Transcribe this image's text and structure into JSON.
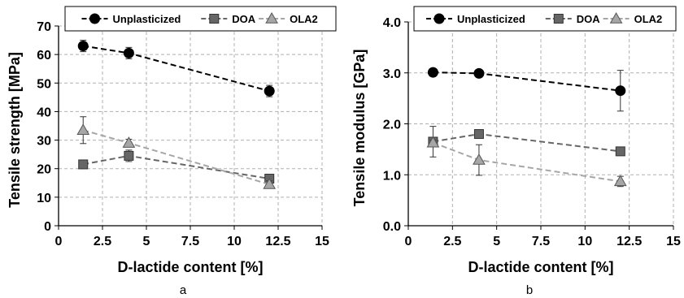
{
  "chart_data": [
    {
      "type": "line",
      "panel_label": "a",
      "xlabel": "D-lactide content [%]",
      "ylabel": "Tensile strength [MPa]",
      "xlim": [
        0,
        15
      ],
      "ylim": [
        0,
        70
      ],
      "xticks": [
        "0",
        "2.5",
        "5",
        "7.5",
        "10",
        "12.5",
        "15"
      ],
      "yticks": [
        "0",
        "10",
        "20",
        "30",
        "40",
        "50",
        "60",
        "70"
      ],
      "grid": true,
      "legend_position": "top",
      "series": [
        {
          "name": "Unplasticized",
          "marker": "circle",
          "color": "#000000",
          "line": "dashed",
          "x": [
            1.4,
            4,
            12
          ],
          "y": [
            63,
            60.5,
            47.2
          ],
          "err": [
            2,
            2,
            2
          ]
        },
        {
          "name": "DOA",
          "marker": "square",
          "color": "#666666",
          "line": "dashed",
          "x": [
            1.4,
            4,
            12
          ],
          "y": [
            21.5,
            24.5,
            16.5
          ],
          "err": [
            0.7,
            2,
            1.2
          ]
        },
        {
          "name": "OLA2",
          "marker": "triangle",
          "color": "#a6a6a6",
          "line": "dashed",
          "x": [
            1.4,
            4,
            12
          ],
          "y": [
            33.5,
            29,
            14.5
          ],
          "err": [
            4.7,
            1.3,
            1.2
          ]
        }
      ]
    },
    {
      "type": "line",
      "panel_label": "b",
      "xlabel": "D-lactide content [%]",
      "ylabel": "Tensile  modulus [GPa]",
      "xlim": [
        0,
        15
      ],
      "ylim": [
        0,
        4
      ],
      "xticks": [
        "0",
        "2.5",
        "5",
        "7.5",
        "10",
        "12.5",
        "15"
      ],
      "yticks": [
        "0.0",
        "1.0",
        "2.0",
        "3.0",
        "4.0"
      ],
      "grid": true,
      "legend_position": "top",
      "series": [
        {
          "name": "Unplasticized",
          "marker": "circle",
          "color": "#000000",
          "line": "dashed",
          "x": [
            1.4,
            4,
            12
          ],
          "y": [
            3.01,
            2.99,
            2.65
          ],
          "err": [
            0.05,
            0.03,
            0.4
          ]
        },
        {
          "name": "DOA",
          "marker": "square",
          "color": "#666666",
          "line": "dashed",
          "x": [
            1.4,
            4,
            12
          ],
          "y": [
            1.65,
            1.8,
            1.46
          ],
          "err": [
            0.3,
            0.07,
            0.05
          ]
        },
        {
          "name": "OLA2",
          "marker": "triangle",
          "color": "#a6a6a6",
          "line": "dashed",
          "x": [
            1.4,
            4,
            12
          ],
          "y": [
            1.63,
            1.29,
            0.87
          ],
          "err": [
            0.05,
            0.3,
            0.1
          ]
        }
      ]
    }
  ]
}
